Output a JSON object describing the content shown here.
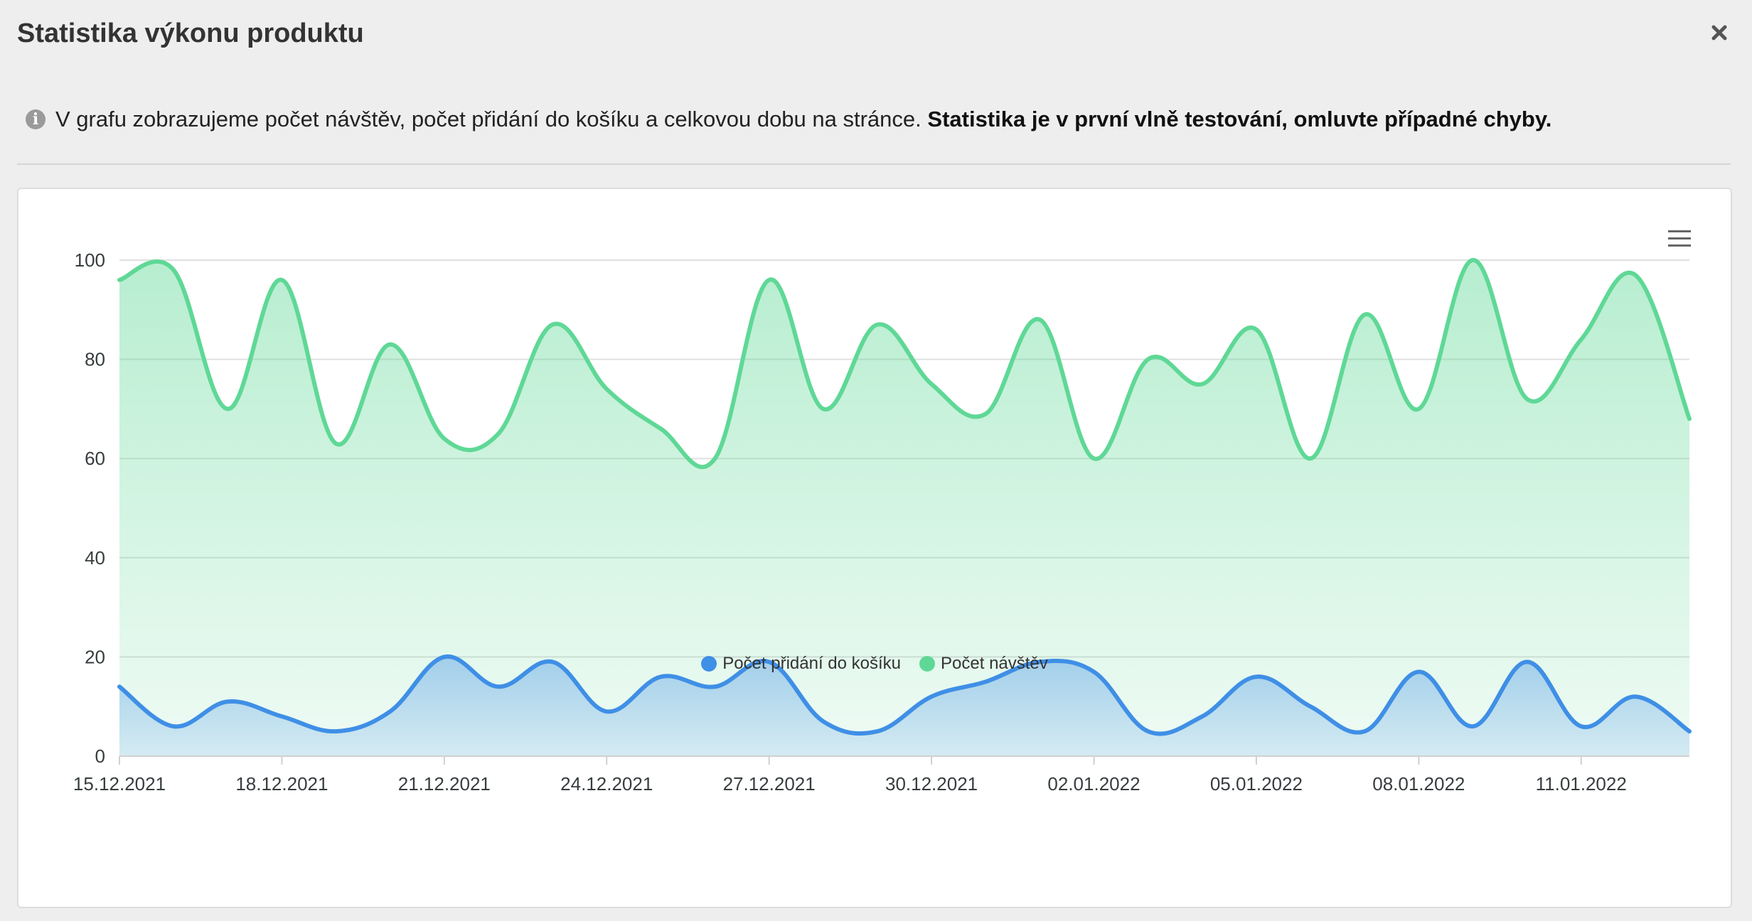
{
  "modal": {
    "title": "Statistika výkonu produktu",
    "close_label": "×"
  },
  "info": {
    "icon": "info-circle-icon",
    "text": "V grafu zobrazujeme počet návštěv, počet přidání do košíku a celkovou dobu na stránce.",
    "bold_text": "Statistika je v první vlně testování, omluvte případné chyby."
  },
  "chart_data": {
    "type": "area",
    "x": [
      "15.12.2021",
      "16.12.2021",
      "17.12.2021",
      "18.12.2021",
      "19.12.2021",
      "20.12.2021",
      "21.12.2021",
      "22.12.2021",
      "23.12.2021",
      "24.12.2021",
      "25.12.2021",
      "26.12.2021",
      "27.12.2021",
      "28.12.2021",
      "29.12.2021",
      "30.12.2021",
      "31.12.2021",
      "01.01.2022",
      "02.01.2022",
      "03.01.2022",
      "04.01.2022",
      "05.01.2022",
      "06.01.2022",
      "07.01.2022",
      "08.01.2022",
      "09.01.2022",
      "10.01.2022",
      "11.01.2022",
      "12.01.2022",
      "13.01.2022"
    ],
    "x_tick_labels": [
      "15.12.2021",
      "18.12.2021",
      "21.12.2021",
      "24.12.2021",
      "27.12.2021",
      "30.12.2021",
      "02.01.2022",
      "05.01.2022",
      "08.01.2022",
      "11.01.2022"
    ],
    "y_tick_labels": [
      "0",
      "20",
      "40",
      "60",
      "80",
      "100"
    ],
    "ylim": [
      0,
      100
    ],
    "grid": true,
    "legend_position": "bottom-center",
    "series": [
      {
        "name": "Počet přidání do košíku",
        "color": "#3f8fe6",
        "values": [
          14,
          6,
          11,
          8,
          5,
          9,
          20,
          14,
          19,
          9,
          16,
          14,
          19,
          7,
          5,
          12,
          15,
          19,
          17,
          5,
          8,
          16,
          10,
          5,
          17,
          6,
          19,
          6,
          12,
          5
        ]
      },
      {
        "name": "Počet návštěv",
        "color": "#5fd896",
        "values": [
          96,
          98,
          70,
          96,
          63,
          83,
          64,
          65,
          87,
          74,
          66,
          60,
          96,
          70,
          87,
          75,
          69,
          88,
          60,
          80,
          75,
          86,
          60,
          89,
          70,
          100,
          72,
          84,
          97,
          68
        ]
      }
    ]
  },
  "toolbar": {
    "menu_icon": "hamburger-menu-icon"
  }
}
